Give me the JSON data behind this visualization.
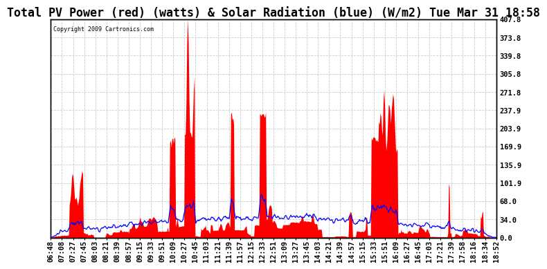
{
  "title": "Total PV Power (red) (watts) & Solar Radiation (blue) (W/m2) Tue Mar 31 18:58",
  "copyright": "Copyright 2009 Cartronics.com",
  "ylabel_right_values": [
    407.8,
    373.8,
    339.8,
    305.8,
    271.8,
    237.9,
    203.9,
    169.9,
    135.9,
    101.9,
    68.0,
    34.0,
    0.0
  ],
  "ylim": [
    0.0,
    407.8
  ],
  "x_labels": [
    "06:48",
    "07:08",
    "07:27",
    "07:45",
    "08:03",
    "08:21",
    "08:39",
    "08:57",
    "09:15",
    "09:33",
    "09:51",
    "10:09",
    "10:27",
    "10:45",
    "11:03",
    "11:21",
    "11:39",
    "11:57",
    "12:15",
    "12:33",
    "12:51",
    "13:09",
    "13:27",
    "13:45",
    "14:03",
    "14:21",
    "14:39",
    "14:57",
    "15:15",
    "15:33",
    "15:51",
    "16:09",
    "16:27",
    "16:45",
    "17:03",
    "17:21",
    "17:39",
    "17:58",
    "18:16",
    "18:34",
    "18:52"
  ],
  "background_color": "#ffffff",
  "fill_color": "#ff0000",
  "line_color": "#0000ff",
  "grid_color": "#cccccc",
  "grid_style": "--",
  "title_fontsize": 12,
  "tick_fontsize": 7.5,
  "border_color": "#000000"
}
